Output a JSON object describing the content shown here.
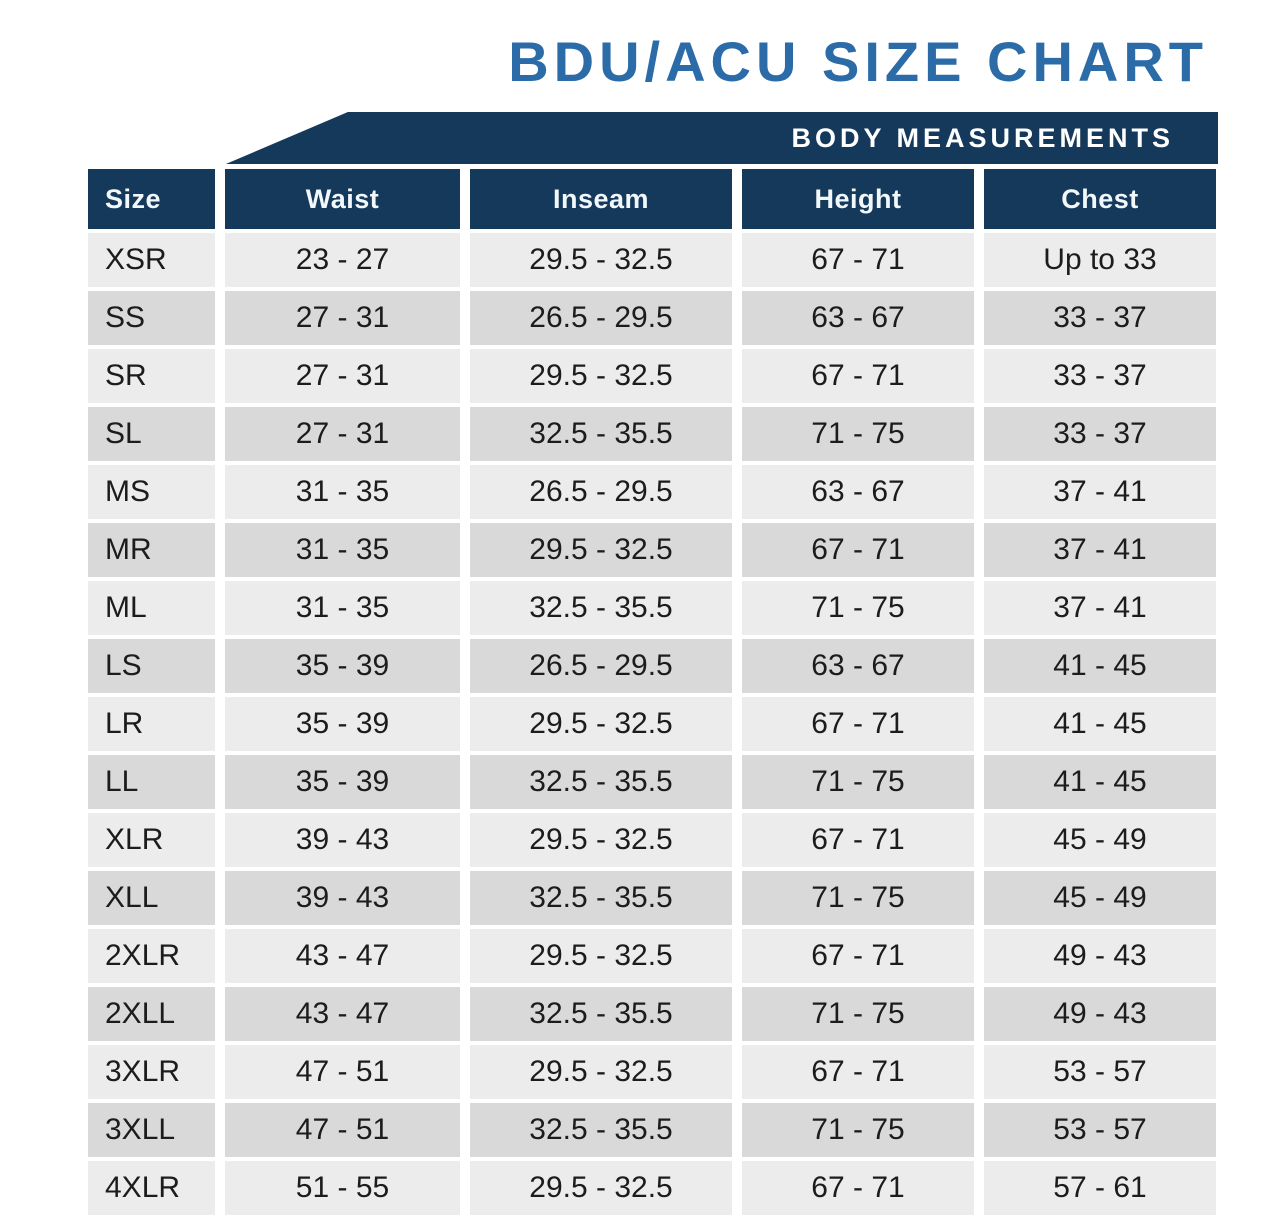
{
  "page_title": "BDU/ACU SIZE CHART",
  "banner_label": "BODY MEASUREMENTS",
  "chart_data": {
    "type": "table",
    "title": "BDU/ACU SIZE CHART",
    "section_label": "BODY MEASUREMENTS",
    "columns": [
      "Size",
      "Waist",
      "Inseam",
      "Height",
      "Chest"
    ],
    "rows": [
      [
        "XSR",
        "23 - 27",
        "29.5 - 32.5",
        "67 - 71",
        "Up to 33"
      ],
      [
        "SS",
        "27 - 31",
        "26.5 - 29.5",
        "63 - 67",
        "33 - 37"
      ],
      [
        "SR",
        "27 - 31",
        "29.5 - 32.5",
        "67 - 71",
        "33 - 37"
      ],
      [
        "SL",
        "27 - 31",
        "32.5 - 35.5",
        "71 - 75",
        "33 - 37"
      ],
      [
        "MS",
        "31 - 35",
        "26.5 - 29.5",
        "63 - 67",
        "37 - 41"
      ],
      [
        "MR",
        "31 - 35",
        "29.5 - 32.5",
        "67 - 71",
        "37 - 41"
      ],
      [
        "ML",
        "31 - 35",
        "32.5 - 35.5",
        "71 - 75",
        "37 - 41"
      ],
      [
        "LS",
        "35 - 39",
        "26.5 - 29.5",
        "63 - 67",
        "41 - 45"
      ],
      [
        "LR",
        "35 - 39",
        "29.5 - 32.5",
        "67 - 71",
        "41 - 45"
      ],
      [
        "LL",
        "35 - 39",
        "32.5 - 35.5",
        "71 - 75",
        "41 - 45"
      ],
      [
        "XLR",
        "39 - 43",
        "29.5 - 32.5",
        "67 - 71",
        "45 - 49"
      ],
      [
        "XLL",
        "39 - 43",
        "32.5 - 35.5",
        "71 - 75",
        "45 - 49"
      ],
      [
        "2XLR",
        "43 - 47",
        "29.5 - 32.5",
        "67 - 71",
        "49 - 43"
      ],
      [
        "2XLL",
        "43 - 47",
        "32.5 - 35.5",
        "71 - 75",
        "49 - 43"
      ],
      [
        "3XLR",
        "47 - 51",
        "29.5 - 32.5",
        "67 - 71",
        "53 - 57"
      ],
      [
        "3XLL",
        "47 - 51",
        "32.5 - 35.5",
        "71 - 75",
        "53 - 57"
      ],
      [
        "4XLR",
        "51 - 55",
        "29.5 - 32.5",
        "67 - 71",
        "57 - 61"
      ]
    ]
  },
  "colors": {
    "navy": "#15395B",
    "title_blue": "#2B6CA8",
    "row_light": "#ECECEC",
    "row_dark": "#D9D9D9",
    "cell_text": "#1C1C1C"
  }
}
